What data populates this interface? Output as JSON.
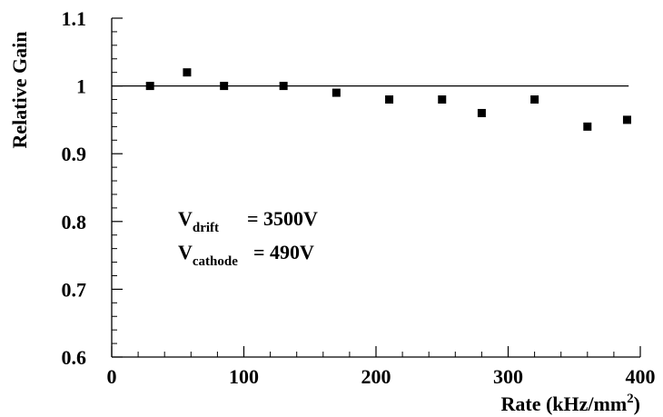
{
  "chart_data": {
    "type": "scatter",
    "xlabel": "Rate (kHz/mm²)",
    "xlabel_parts": {
      "main": "Rate (kHz/mm",
      "superscript": "2",
      "close": ")"
    },
    "ylabel": "Relative Gain",
    "xlim": [
      0,
      400
    ],
    "ylim": [
      0.6,
      1.1
    ],
    "x_ticks": [
      0,
      100,
      200,
      300,
      400
    ],
    "y_ticks": [
      0.6,
      0.7,
      0.8,
      0.9,
      1,
      1.1
    ],
    "x_tick_labels": [
      "0",
      "100",
      "200",
      "300",
      "400"
    ],
    "y_tick_labels": [
      "0.6",
      "0.7",
      "0.8",
      "0.9",
      "1",
      "1.1"
    ],
    "x_minor_step": 20,
    "y_minor_step": 0.02,
    "reference_line": 1.0,
    "marker": "square",
    "marker_color": "#000000",
    "grid": false,
    "series": [
      {
        "x": [
          29,
          57,
          85,
          130,
          170,
          210,
          250,
          280,
          320,
          360,
          390
        ],
        "y": [
          1.0,
          1.02,
          1.0,
          1.0,
          0.99,
          0.98,
          0.98,
          0.96,
          0.98,
          0.94,
          0.95
        ]
      }
    ],
    "annotations": [
      {
        "main": "V",
        "sub": "drift",
        "rest": "= 3500V"
      },
      {
        "main": "V",
        "sub": "cathode",
        "rest": "= 490V"
      }
    ]
  }
}
